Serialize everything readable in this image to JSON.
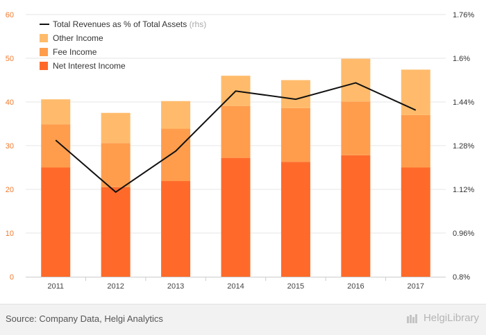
{
  "chart_data": {
    "type": "bar",
    "stacked": true,
    "categories": [
      "2011",
      "2012",
      "2013",
      "2014",
      "2015",
      "2016",
      "2017"
    ],
    "series": [
      {
        "name": "Net Interest Income",
        "color": "#ff6a2a",
        "values": [
          25.0,
          20.5,
          21.9,
          27.2,
          26.3,
          27.8,
          25.0
        ]
      },
      {
        "name": "Fee Income",
        "color": "#ff9d4d",
        "values": [
          9.9,
          10.1,
          12.0,
          11.9,
          12.3,
          12.3,
          12.0
        ]
      },
      {
        "name": "Other Income",
        "color": "#ffbb6b",
        "values": [
          5.7,
          6.9,
          6.3,
          6.9,
          6.4,
          9.8,
          10.4
        ]
      }
    ],
    "line_series": {
      "name": "Total Revenues as % of Total Assets",
      "suffix": "(rhs)",
      "color": "#111111",
      "values": [
        1.3,
        1.11,
        1.26,
        1.48,
        1.45,
        1.51,
        1.41
      ]
    },
    "y_left": {
      "min": 0,
      "max": 60,
      "ticks": [
        "0",
        "10",
        "20",
        "30",
        "40",
        "50",
        "60"
      ]
    },
    "y_right": {
      "min": 0.8,
      "max": 1.76,
      "ticks": [
        "0.8%",
        "0.96%",
        "1.12%",
        "1.28%",
        "1.44%",
        "1.6%",
        "1.76%"
      ]
    },
    "legend_position": "top-left",
    "grid": true,
    "colors": {
      "left_axis": "#f07a2e",
      "right_axis": "#333333",
      "grid": "#e6e6e6"
    }
  },
  "footer": {
    "source": "Source: Company Data, Helgi Analytics",
    "brand": "HelgiLibrary"
  }
}
